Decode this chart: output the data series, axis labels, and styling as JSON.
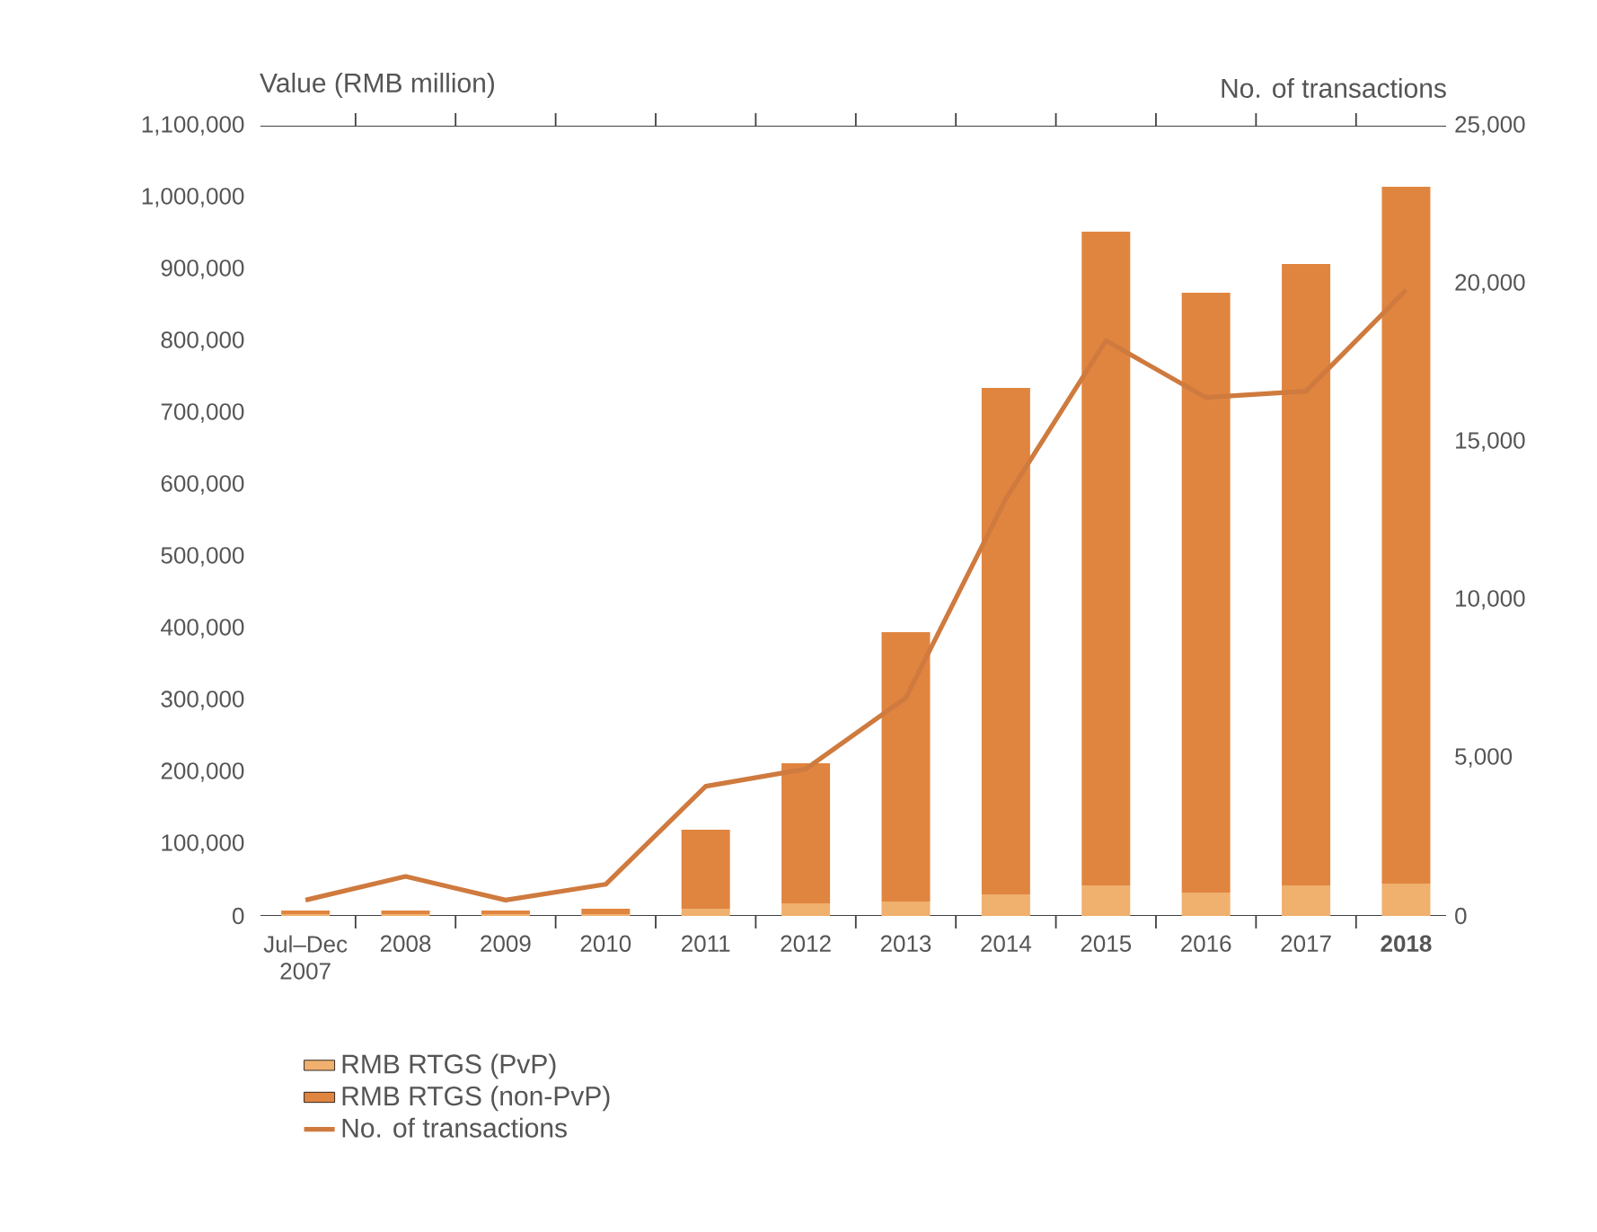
{
  "chart_data": {
    "type": "bar",
    "stacked": true,
    "ylabel": "Value (RMB million)",
    "y2label": "No. of transactions",
    "categories": [
      "Jul–Dec 2007",
      "2008",
      "2009",
      "2010",
      "2011",
      "2012",
      "2013",
      "2014",
      "2015",
      "2016",
      "2017",
      "**2018**"
    ],
    "series": [
      {
        "name": "RMB RTGS (PvP)",
        "color": "#f0b06e",
        "values": [
          2500,
          2500,
          2500,
          2500,
          10000,
          17500,
          20000,
          30000,
          42500,
          32500,
          42500,
          45000
        ]
      },
      {
        "name": "RMB RTGS (non-PvP)",
        "color": "#e08540",
        "values": [
          5000,
          5000,
          5000,
          7500,
          110000,
          195000,
          375000,
          705000,
          910000,
          835000,
          865000,
          970000
        ]
      },
      {
        "name": "No. of transactions",
        "type": "line",
        "axis": "y2",
        "color": "#cf7a3e",
        "values": [
          500,
          1250,
          500,
          1000,
          4100,
          4650,
          6900,
          13200,
          18200,
          16400,
          16600,
          19800
        ]
      }
    ],
    "ylim": [
      0,
      1100000
    ],
    "yticks": [
      {
        "value": 0,
        "label": "0"
      },
      {
        "value": 100000,
        "label": "100,000"
      },
      {
        "value": 200000,
        "label": "200,000"
      },
      {
        "value": 300000,
        "label": "300,000"
      },
      {
        "value": 400000,
        "label": "400,000"
      },
      {
        "value": 500000,
        "label": "500,000"
      },
      {
        "value": 600000,
        "label": "600,000"
      },
      {
        "value": 700000,
        "label": "700,000"
      },
      {
        "value": 800000,
        "label": "800,000"
      },
      {
        "value": 900000,
        "label": "900,000"
      },
      {
        "value": 1000000,
        "label": "1,000,000"
      },
      {
        "value": 1100000,
        "label": "1,100,000"
      }
    ],
    "y2lim": [
      0,
      25000
    ],
    "y2ticks": [
      {
        "value": 0,
        "label": "0"
      },
      {
        "value": 5000,
        "label": "5,000"
      },
      {
        "value": 10000,
        "label": "10,000"
      },
      {
        "value": 15000,
        "label": "15,000"
      },
      {
        "value": 20000,
        "label": "20,000"
      },
      {
        "value": 25000,
        "label": "25,000"
      }
    ],
    "legend": "bottom"
  }
}
